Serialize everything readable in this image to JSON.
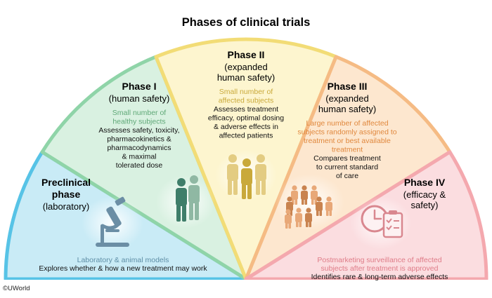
{
  "title": "Phases of clinical trials",
  "copyright": "©UWorld",
  "colors": {
    "preclinical": {
      "fill": "#c9ebf6",
      "stroke": "#57c3e6",
      "sub": "#5e8ea6"
    },
    "phase1": {
      "fill": "#d9f1e1",
      "stroke": "#8fd4a8",
      "sub": "#5fa877"
    },
    "phase2": {
      "fill": "#fdf5cf",
      "stroke": "#f2dc76",
      "sub": "#c9a93a"
    },
    "phase3": {
      "fill": "#fde7cf",
      "stroke": "#f5bb84",
      "sub": "#e0883e"
    },
    "phase4": {
      "fill": "#fbdde0",
      "stroke": "#f4a8ae",
      "sub": "#df7c88"
    },
    "heading": "#000000",
    "body": "#111111"
  },
  "phases": {
    "preclinical": {
      "heading": [
        "Preclinical",
        "phase"
      ],
      "subtitle": [
        "(laboratory)"
      ],
      "colored_text": [
        "Laboratory & animal models"
      ],
      "body": [
        "Explores whether & how a new treatment may work"
      ],
      "icon": "microscope-icon"
    },
    "phase1": {
      "heading": [
        "Phase I"
      ],
      "subtitle": [
        "(human safety)"
      ],
      "colored_text": [
        "Small number of",
        "healthy subjects"
      ],
      "body": [
        "Assesses safety, toxicity,",
        "pharmacokinetics &",
        "pharmacodynamics",
        "& maximal",
        "tolerated dose"
      ],
      "icon": "two-people-icon"
    },
    "phase2": {
      "heading": [
        "Phase II"
      ],
      "subtitle": [
        "(expanded",
        "human safety)"
      ],
      "colored_text": [
        "Small number of",
        "affected subjects"
      ],
      "body": [
        "Assesses treatment",
        "efficacy, optimal dosing",
        "& adverse effects in",
        "affected patients"
      ],
      "icon": "three-people-icon"
    },
    "phase3": {
      "heading": [
        "Phase III"
      ],
      "subtitle": [
        "(expanded",
        "human safety)"
      ],
      "colored_text": [
        "Large number of affected",
        "subjects randomly assigned to",
        "treatment or best available",
        "treatment"
      ],
      "body": [
        "Compares treatment",
        "to current standard",
        "of care"
      ],
      "icon": "crowd-icon"
    },
    "phase4": {
      "heading": [
        "Phase IV"
      ],
      "subtitle": [
        "(efficacy &",
        "safety)"
      ],
      "colored_text": [
        "Postmarketing surveillance of affected",
        "subjects after treatment is approved"
      ],
      "body": [
        "Identifies rare & long-term adverse effects"
      ],
      "icon": "clock-checklist-icon"
    }
  }
}
